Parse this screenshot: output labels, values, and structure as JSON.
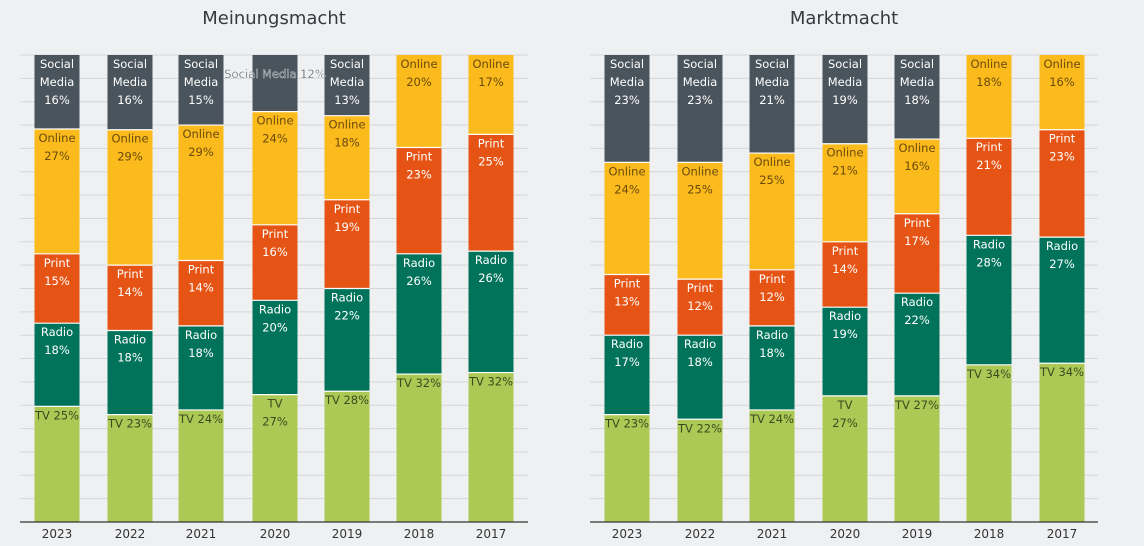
{
  "colors": {
    "Social Media": "#4a545c",
    "Online": "#fbbb1c",
    "Print": "#e55414",
    "Radio": "#00735a",
    "TV": "#acc955"
  },
  "label_colors": {
    "Social Media": "#ffffff",
    "Online": "#6b4a0c",
    "Print": "#ffffff",
    "Radio": "#ffffff",
    "TV": "#3d4a20"
  },
  "chart_data": [
    {
      "type": "bar",
      "stacked": true,
      "title": "Meinungsmacht",
      "categories": [
        "2023",
        "2022",
        "2021",
        "2020",
        "2019",
        "2018",
        "2017"
      ],
      "ylim": [
        0,
        100
      ],
      "grid": true,
      "series": [
        {
          "name": "TV",
          "values": [
            25,
            23,
            24,
            27,
            28,
            32,
            32
          ],
          "labels": [
            "TV 25%",
            "TV 23%",
            "TV 24%",
            "TV\n27%",
            "TV 28%",
            "TV 32%",
            "TV 32%"
          ]
        },
        {
          "name": "Radio",
          "values": [
            18,
            18,
            18,
            20,
            22,
            26,
            26
          ],
          "labels": [
            "Radio\n18%",
            "Radio\n18%",
            "Radio\n18%",
            "Radio\n20%",
            "Radio\n22%",
            "Radio\n26%",
            "Radio\n26%"
          ]
        },
        {
          "name": "Print",
          "values": [
            15,
            14,
            14,
            16,
            19,
            23,
            25
          ],
          "labels": [
            "Print\n15%",
            "Print\n14%",
            "Print\n14%",
            "Print\n16%",
            "Print\n19%",
            "Print\n23%",
            "Print\n25%"
          ]
        },
        {
          "name": "Online",
          "values": [
            27,
            29,
            29,
            24,
            18,
            20,
            17
          ],
          "labels": [
            "Online\n27%",
            "Online\n29%",
            "Online\n29%",
            "Online\n24%",
            "Online\n18%",
            "Online\n20%",
            "Online\n17%"
          ]
        },
        {
          "name": "Social Media",
          "values": [
            16,
            16,
            15,
            12,
            13,
            0,
            0
          ],
          "labels": [
            "Social\nMedia\n16%",
            "Social\nMedia\n16%",
            "Social\nMedia\n15%",
            "Social Media 12%",
            "Social\nMedia\n13%",
            "",
            ""
          ]
        }
      ]
    },
    {
      "type": "bar",
      "stacked": true,
      "title": "Marktmacht",
      "categories": [
        "2023",
        "2022",
        "2021",
        "2020",
        "2019",
        "2018",
        "2017"
      ],
      "ylim": [
        0,
        100
      ],
      "grid": true,
      "series": [
        {
          "name": "TV",
          "values": [
            23,
            22,
            24,
            27,
            27,
            34,
            34
          ],
          "labels": [
            "TV 23%",
            "TV 22%",
            "TV 24%",
            "TV\n27%",
            "TV 27%",
            "TV 34%",
            "TV 34%"
          ]
        },
        {
          "name": "Radio",
          "values": [
            17,
            18,
            18,
            19,
            22,
            28,
            27
          ],
          "labels": [
            "Radio\n17%",
            "Radio\n18%",
            "Radio\n18%",
            "Radio\n19%",
            "Radio\n22%",
            "Radio\n28%",
            "Radio\n27%"
          ]
        },
        {
          "name": "Print",
          "values": [
            13,
            12,
            12,
            14,
            17,
            21,
            23
          ],
          "labels": [
            "Print\n13%",
            "Print\n12%",
            "Print\n12%",
            "Print\n14%",
            "Print\n17%",
            "Print\n21%",
            "Print\n23%"
          ]
        },
        {
          "name": "Online",
          "values": [
            24,
            25,
            25,
            21,
            16,
            18,
            16
          ],
          "labels": [
            "Online\n24%",
            "Online\n25%",
            "Online\n25%",
            "Online\n21%",
            "Online\n16%",
            "Online\n18%",
            "Online\n16%"
          ]
        },
        {
          "name": "Social Media",
          "values": [
            23,
            23,
            21,
            19,
            18,
            0,
            0
          ],
          "labels": [
            "Social\nMedia\n23%",
            "Social\nMedia\n23%",
            "Social\nMedia\n21%",
            "Social\nMedia\n19%",
            "Social\nMedia\n18%",
            "",
            ""
          ]
        }
      ]
    }
  ]
}
